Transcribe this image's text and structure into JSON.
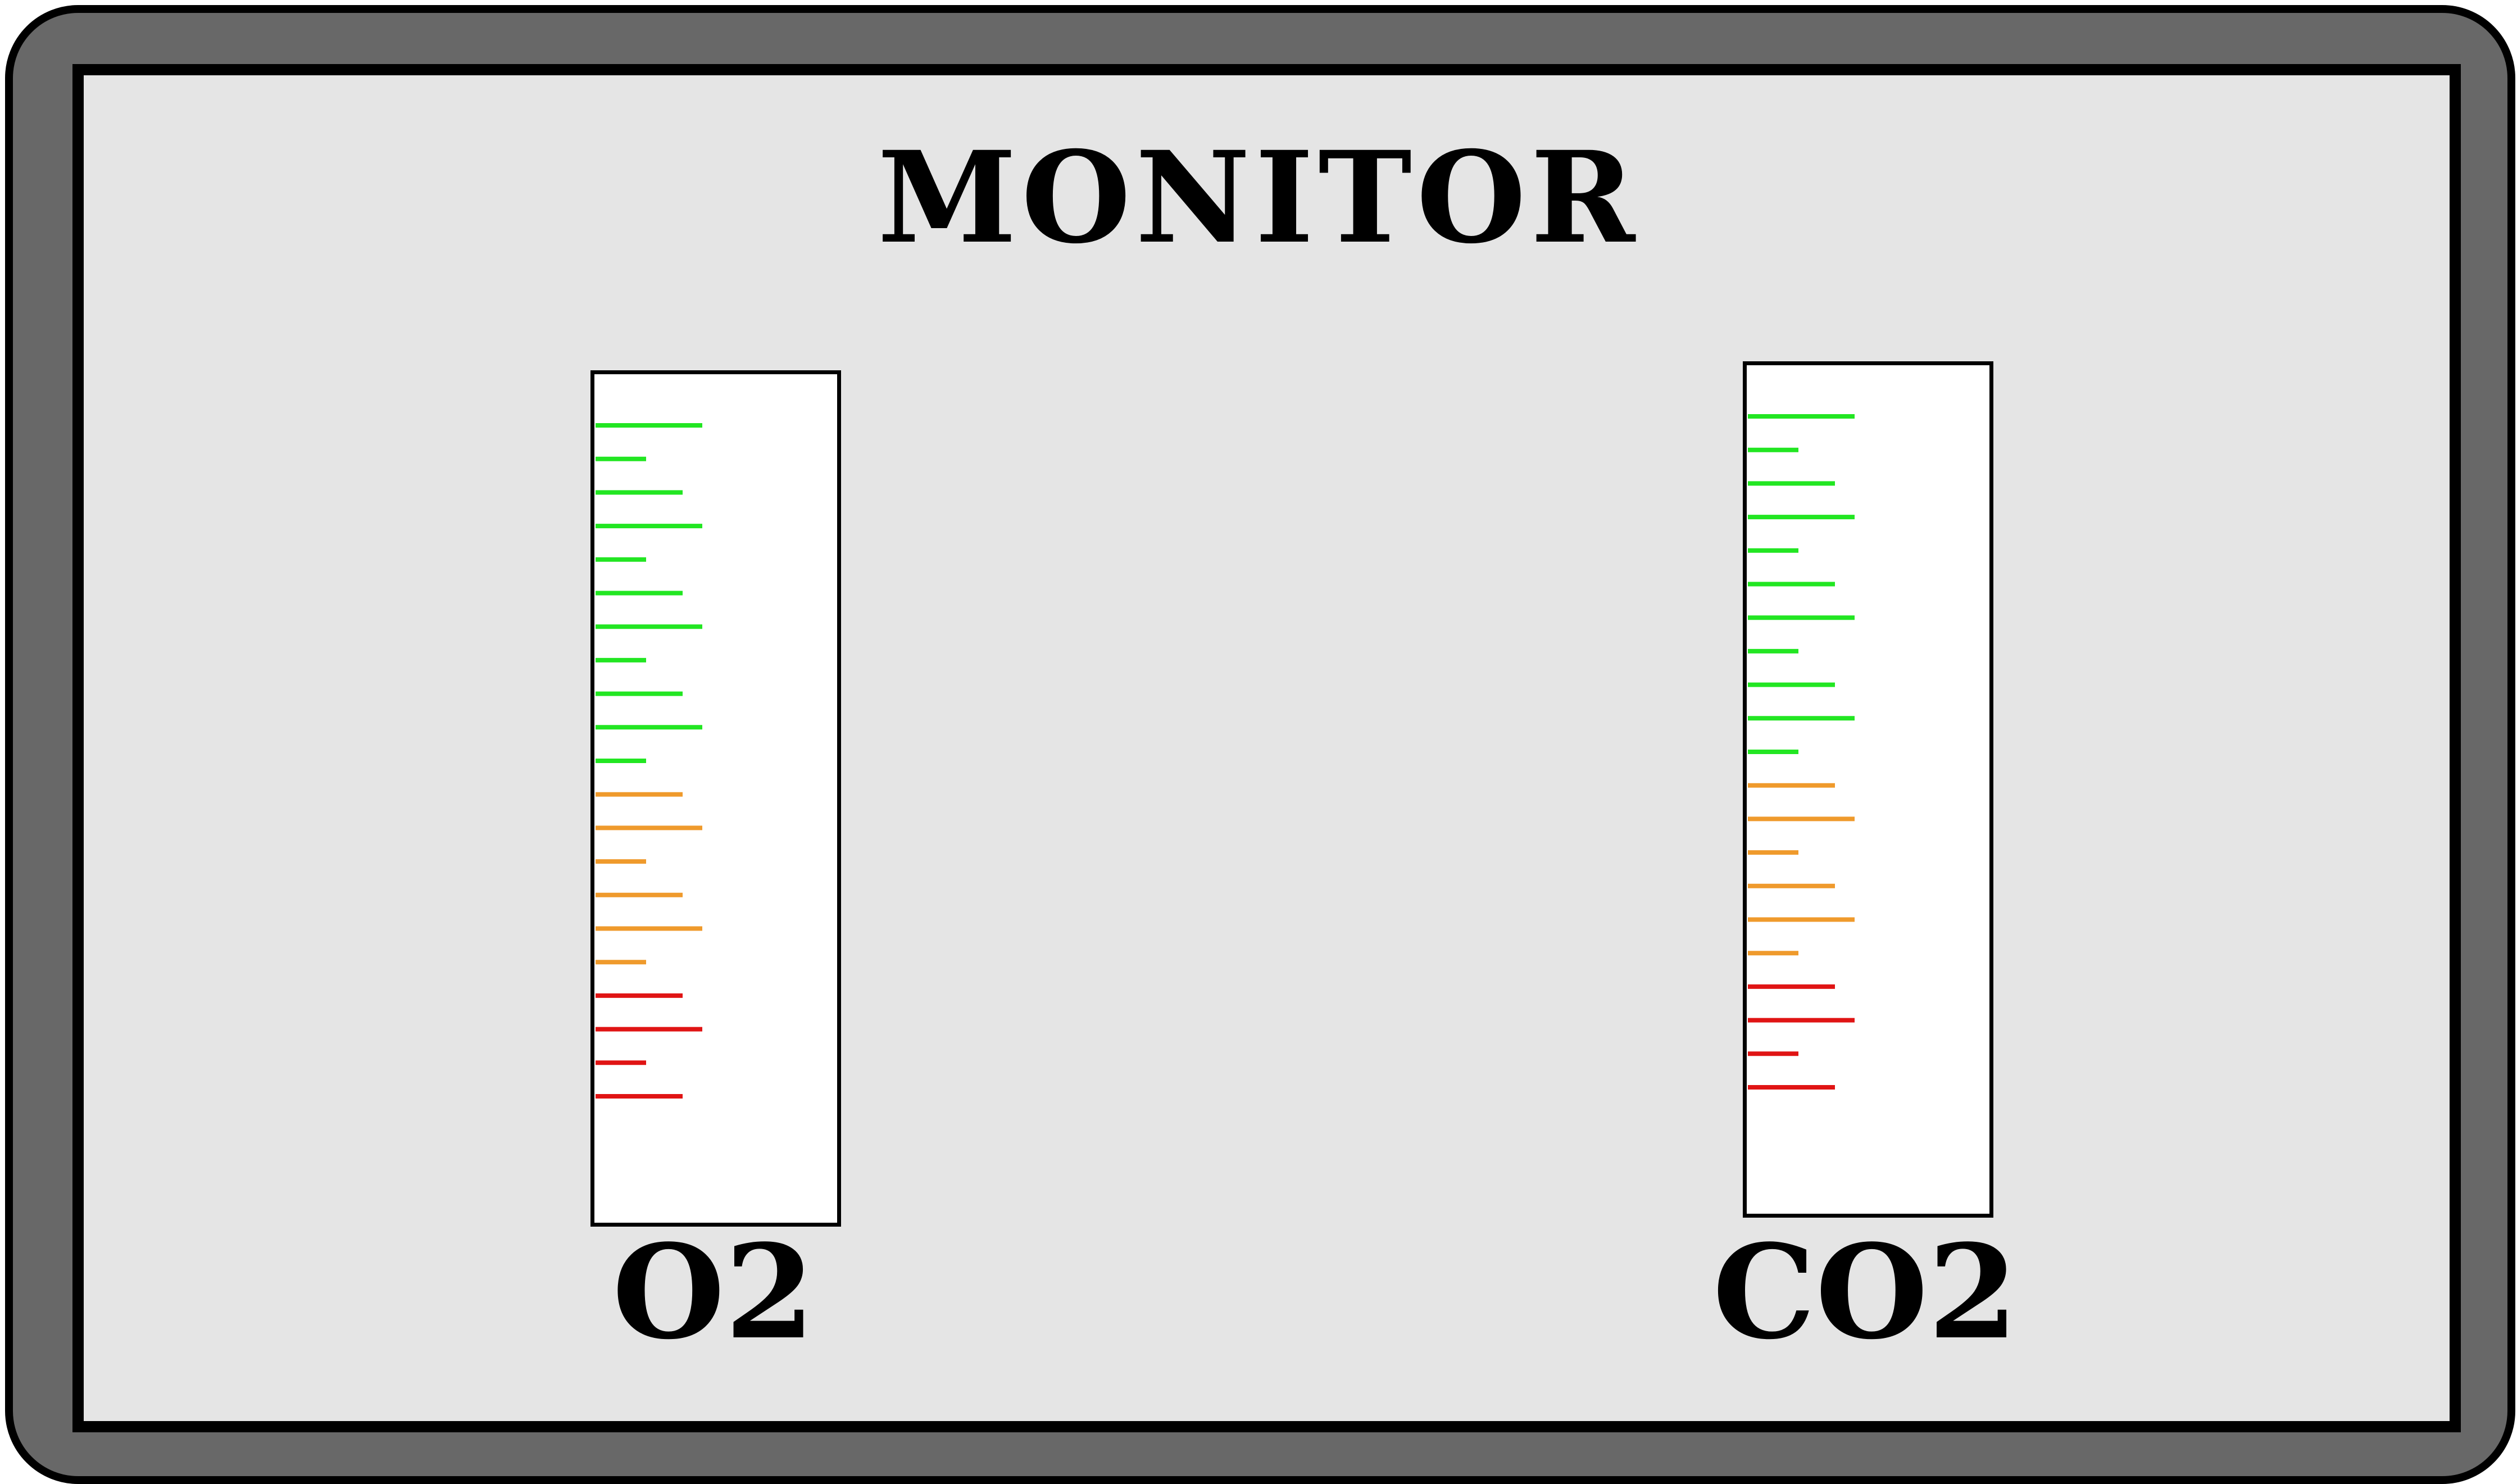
{
  "title": "MONITOR",
  "colors": {
    "frame": "#686868",
    "screen": "#e5e5e5",
    "gauge_bg": "#ffffff",
    "green": "#22e622",
    "orange": "#ef9a2c",
    "red": "#e01414"
  },
  "gauges": [
    {
      "label": "O2",
      "ticks": [
        {
          "size": "long",
          "color": "green"
        },
        {
          "size": "short",
          "color": "green"
        },
        {
          "size": "medium",
          "color": "green"
        },
        {
          "size": "long",
          "color": "green"
        },
        {
          "size": "short",
          "color": "green"
        },
        {
          "size": "medium",
          "color": "green"
        },
        {
          "size": "long",
          "color": "green"
        },
        {
          "size": "short",
          "color": "green"
        },
        {
          "size": "medium",
          "color": "green"
        },
        {
          "size": "long",
          "color": "green"
        },
        {
          "size": "short",
          "color": "green"
        },
        {
          "size": "medium",
          "color": "orange"
        },
        {
          "size": "long",
          "color": "orange"
        },
        {
          "size": "short",
          "color": "orange"
        },
        {
          "size": "medium",
          "color": "orange"
        },
        {
          "size": "long",
          "color": "orange"
        },
        {
          "size": "short",
          "color": "orange"
        },
        {
          "size": "medium",
          "color": "red"
        },
        {
          "size": "long",
          "color": "red"
        },
        {
          "size": "short",
          "color": "red"
        },
        {
          "size": "medium",
          "color": "red"
        }
      ]
    },
    {
      "label": "CO2",
      "ticks": [
        {
          "size": "long",
          "color": "green"
        },
        {
          "size": "short",
          "color": "green"
        },
        {
          "size": "medium",
          "color": "green"
        },
        {
          "size": "long",
          "color": "green"
        },
        {
          "size": "short",
          "color": "green"
        },
        {
          "size": "medium",
          "color": "green"
        },
        {
          "size": "long",
          "color": "green"
        },
        {
          "size": "short",
          "color": "green"
        },
        {
          "size": "medium",
          "color": "green"
        },
        {
          "size": "long",
          "color": "green"
        },
        {
          "size": "short",
          "color": "green"
        },
        {
          "size": "medium",
          "color": "orange"
        },
        {
          "size": "long",
          "color": "orange"
        },
        {
          "size": "short",
          "color": "orange"
        },
        {
          "size": "medium",
          "color": "orange"
        },
        {
          "size": "long",
          "color": "orange"
        },
        {
          "size": "short",
          "color": "orange"
        },
        {
          "size": "medium",
          "color": "red"
        },
        {
          "size": "long",
          "color": "red"
        },
        {
          "size": "short",
          "color": "red"
        },
        {
          "size": "medium",
          "color": "red"
        }
      ]
    }
  ]
}
